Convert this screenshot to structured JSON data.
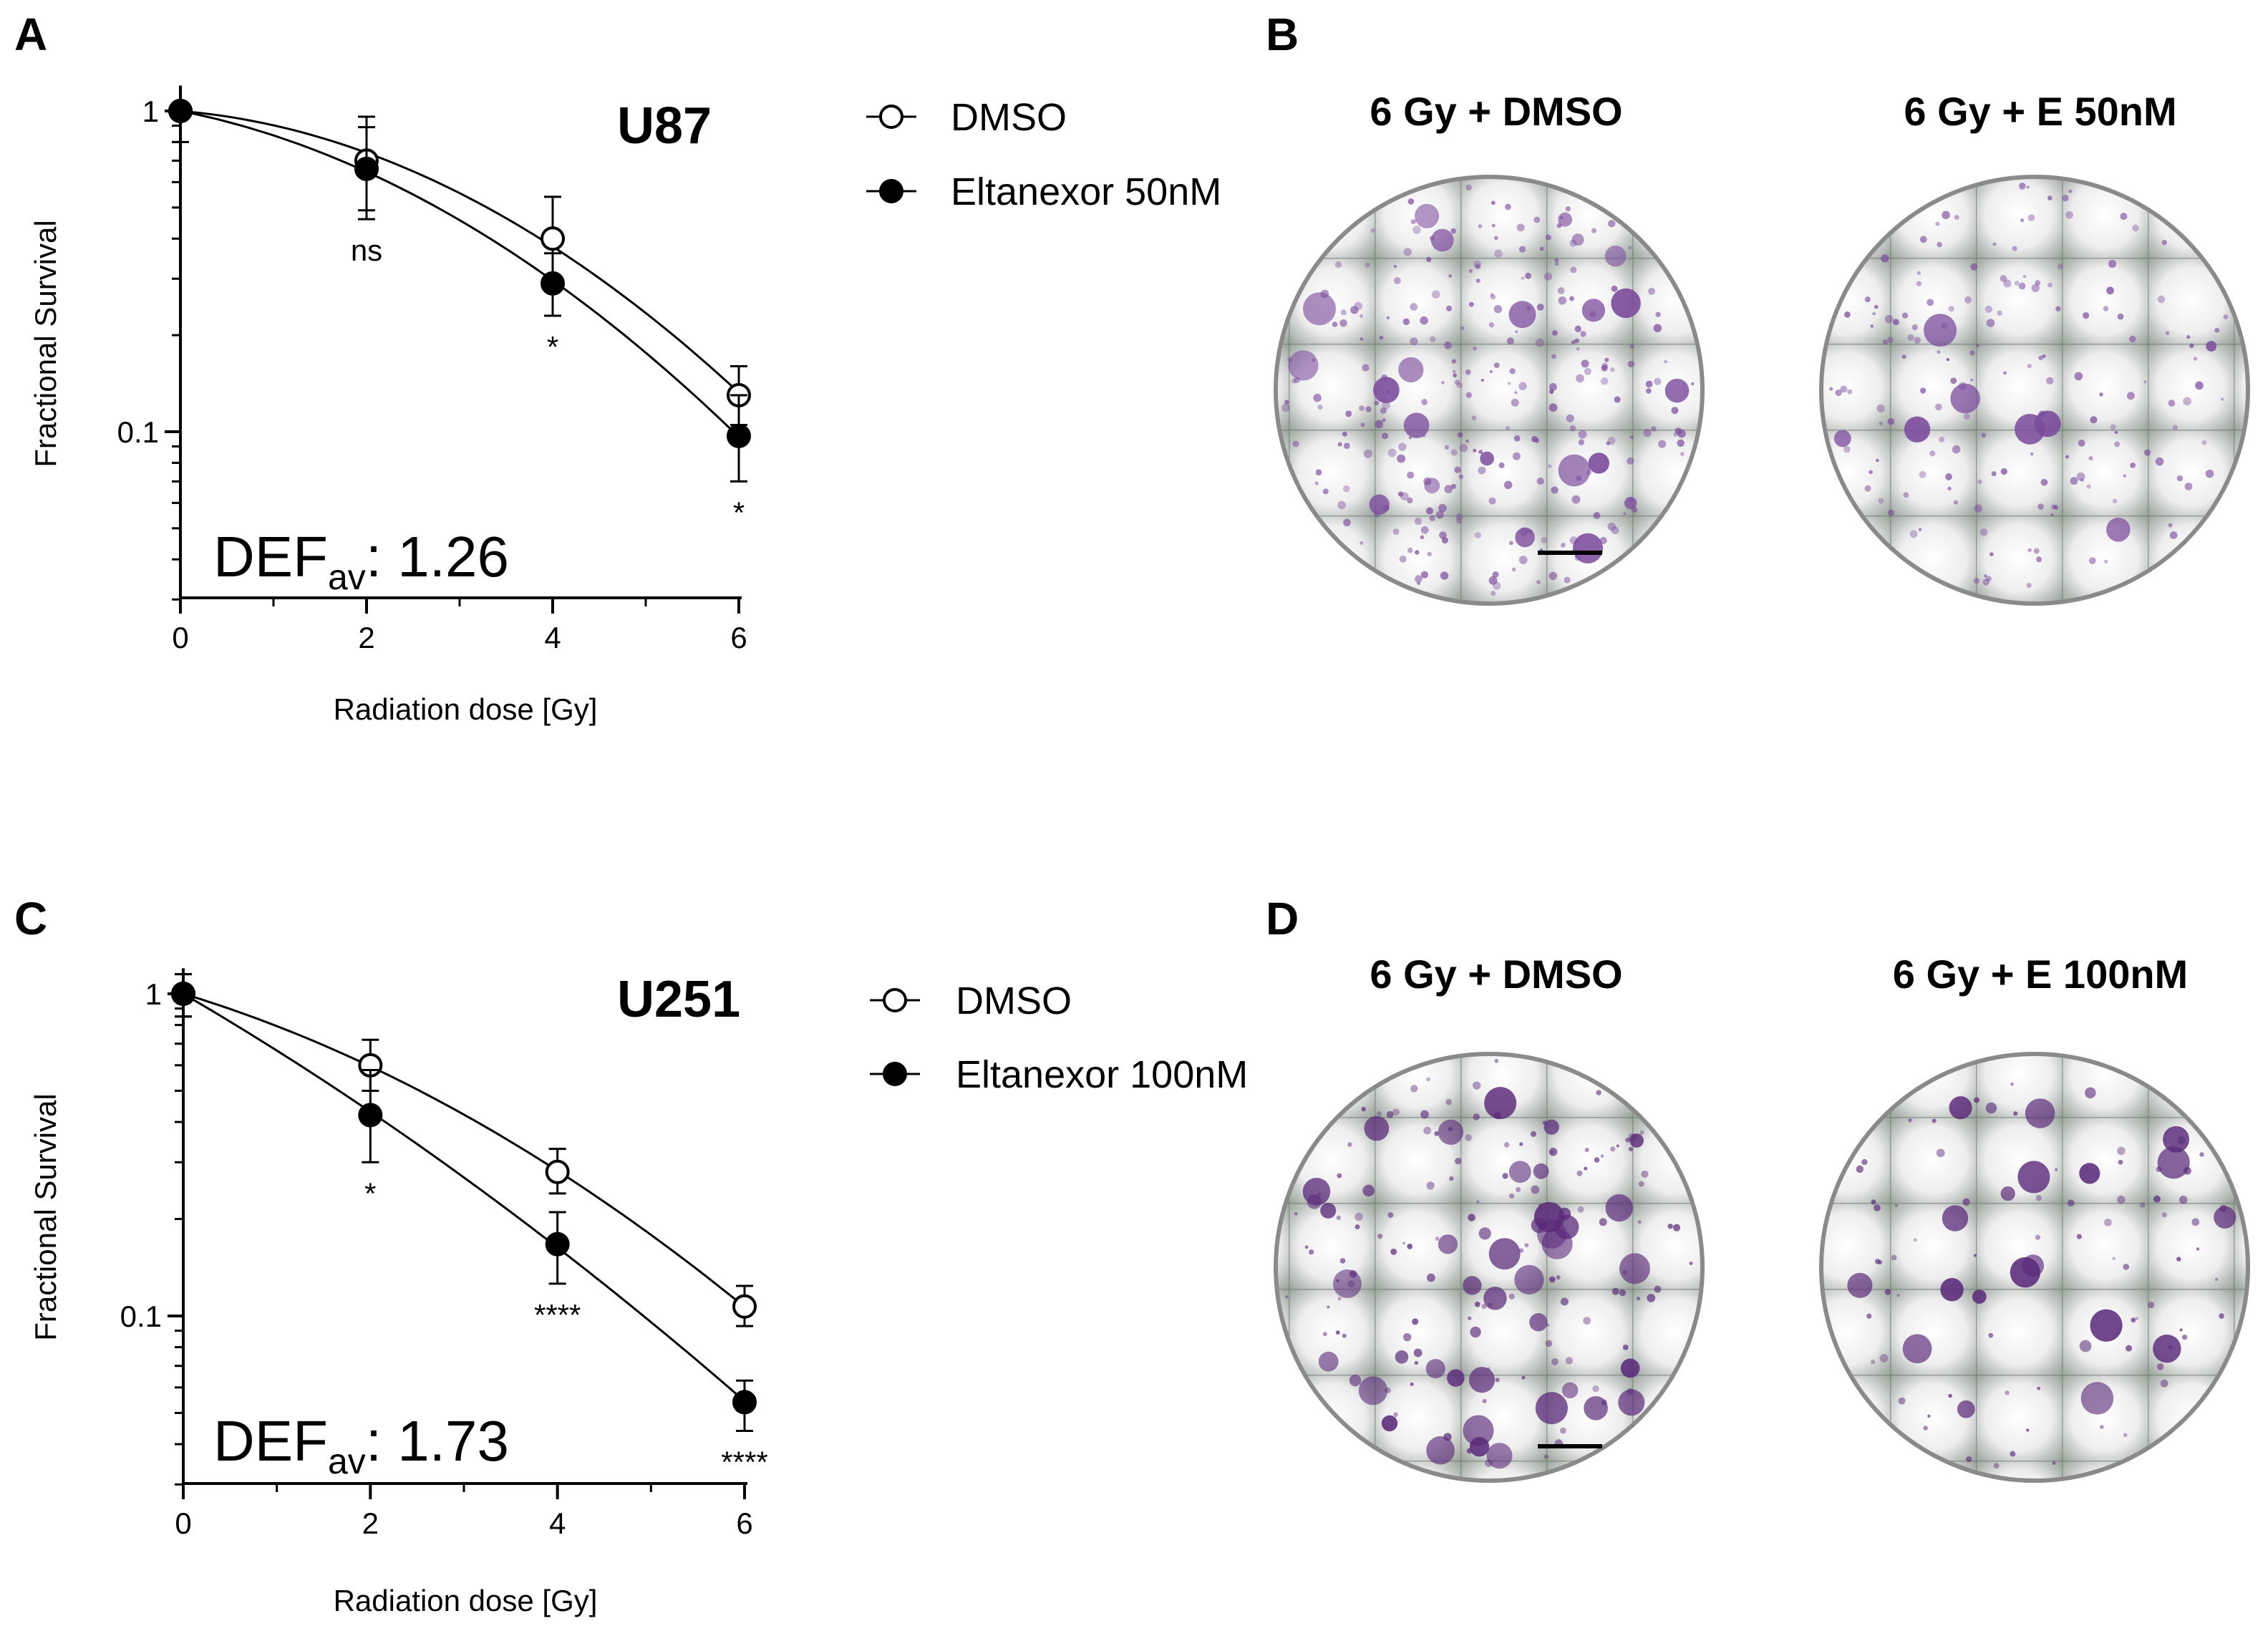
{
  "panels": {
    "A": "A",
    "B": "B",
    "C": "C",
    "D": "D"
  },
  "chart_data": [
    {
      "type": "line",
      "panel": "A",
      "cell_line": "U87",
      "xlabel": "Radiation dose [Gy]",
      "ylabel": "Fractional Survival",
      "y_scale": "log",
      "x_ticks": [
        "0",
        "2",
        "4",
        "6"
      ],
      "y_ticks": [
        "1",
        "0.1"
      ],
      "x_range": [
        0,
        6
      ],
      "y_range": [
        0.03,
        1.2
      ],
      "legend_position": "right",
      "def_label": "DEF",
      "def_sub": "av",
      "def_value": ": 1.26",
      "series": [
        {
          "name": "DMSO",
          "marker": "open-circle",
          "color": "#000000",
          "x": [
            0,
            2,
            4,
            6
          ],
          "y": [
            1.0,
            0.7,
            0.4,
            0.13
          ],
          "err_hi": [
            1.0,
            0.96,
            0.54,
            0.16
          ],
          "err_lo": [
            1.0,
            0.49,
            0.3,
            0.105
          ]
        },
        {
          "name": "Eltanexor 50nM",
          "marker": "filled-circle",
          "color": "#000000",
          "x": [
            0,
            2,
            4,
            6
          ],
          "y": [
            1.0,
            0.66,
            0.29,
            0.097
          ],
          "err_hi": [
            1.0,
            0.89,
            0.36,
            0.13
          ],
          "err_lo": [
            0.8,
            0.46,
            0.23,
            0.07
          ]
        }
      ],
      "significance": [
        {
          "x": 2,
          "label": "ns"
        },
        {
          "x": 4,
          "label": "*"
        },
        {
          "x": 6,
          "label": "*"
        }
      ]
    },
    {
      "type": "line",
      "panel": "C",
      "cell_line": "U251",
      "xlabel": "Radiation dose [Gy]",
      "ylabel": "Fractional Survival",
      "y_scale": "log",
      "x_ticks": [
        "0",
        "2",
        "4",
        "6"
      ],
      "y_ticks": [
        "1",
        "0.1"
      ],
      "x_range": [
        0,
        6
      ],
      "y_range": [
        0.03,
        1.2
      ],
      "legend_position": "right",
      "def_label": "DEF",
      "def_sub": "av",
      "def_value": ": 1.73",
      "series": [
        {
          "name": "DMSO",
          "marker": "open-circle",
          "color": "#000000",
          "x": [
            0,
            2,
            4,
            6
          ],
          "y": [
            1.0,
            0.6,
            0.28,
            0.107
          ],
          "err_hi": [
            1.15,
            0.72,
            0.33,
            0.124
          ],
          "err_lo": [
            0.85,
            0.5,
            0.24,
            0.093
          ]
        },
        {
          "name": "Eltanexor 100nM",
          "marker": "filled-circle",
          "color": "#000000",
          "x": [
            0,
            2,
            4,
            6
          ],
          "y": [
            1.0,
            0.42,
            0.167,
            0.054
          ],
          "err_hi": [
            1.15,
            0.58,
            0.21,
            0.063
          ],
          "err_lo": [
            0.85,
            0.3,
            0.126,
            0.044
          ]
        }
      ],
      "significance": [
        {
          "x": 2,
          "label": "*"
        },
        {
          "x": 4,
          "label": "****"
        },
        {
          "x": 6,
          "label": "****"
        }
      ]
    }
  ],
  "dishes": {
    "B": {
      "left_title": "6 Gy + DMSO",
      "right_title": "6 Gy + E 50nM",
      "stain_color": "#7a4a9c",
      "left_colony_density": "high",
      "right_colony_density": "low"
    },
    "D": {
      "left_title": "6 Gy + DMSO",
      "right_title": "6 Gy + E 100nM",
      "stain_color": "#5a2a7a",
      "left_colony_density": "high",
      "right_colony_density": "low"
    }
  }
}
